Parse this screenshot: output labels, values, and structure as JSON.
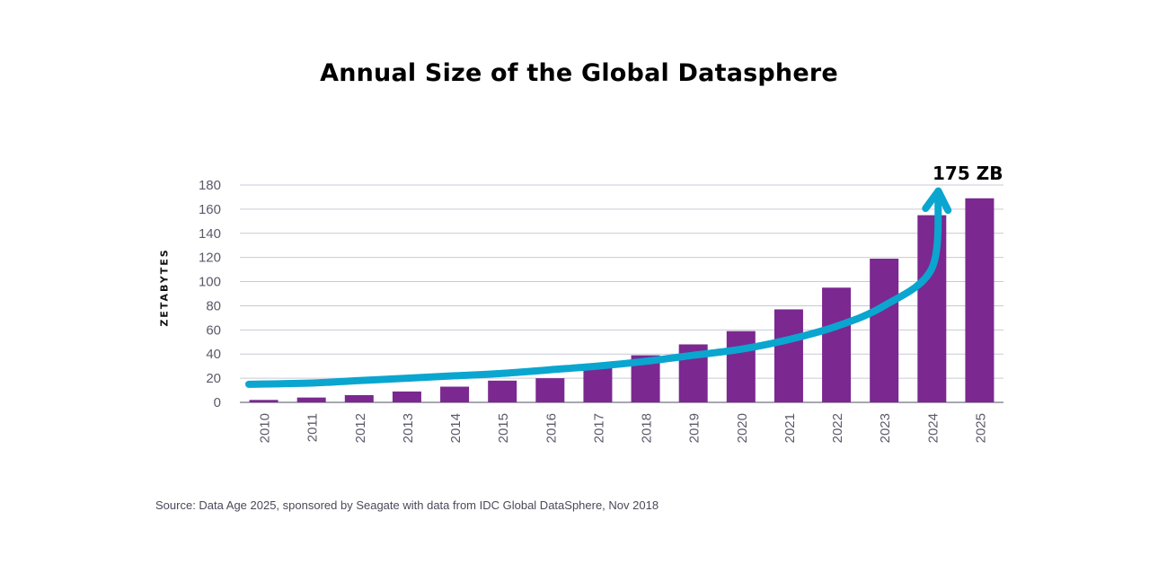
{
  "chart_data": {
    "type": "bar",
    "title": "Annual Size of the Global Datasphere",
    "ylabel": "ZETABYTES",
    "xlabel": "",
    "ylim": [
      0,
      180
    ],
    "yticks": [
      "0",
      "20",
      "40",
      "60",
      "80",
      "100",
      "120",
      "140",
      "160",
      "180"
    ],
    "categories": [
      "2010",
      "2011",
      "2012",
      "2013",
      "2014",
      "2015",
      "2016",
      "2017",
      "2018",
      "2019",
      "2020",
      "2021",
      "2022",
      "2023",
      "2024",
      "2025"
    ],
    "values": [
      2,
      4,
      6,
      9,
      13,
      18,
      20,
      30,
      39,
      48,
      59,
      77,
      95,
      119,
      155,
      169
    ],
    "trend_arrow": [
      15,
      16,
      18,
      20,
      22,
      24,
      27,
      30,
      34,
      39,
      44,
      52,
      63,
      80,
      111,
      175
    ],
    "annotation": "175 ZB",
    "source": "Source: Data Age 2025, sponsored by Seagate with data from IDC Global DataSphere, Nov 2018",
    "colors": {
      "bar": "#7b2890",
      "arrow": "#0aa6cf",
      "grid": "#c9c9d6",
      "axis": "#8a8a99"
    }
  }
}
